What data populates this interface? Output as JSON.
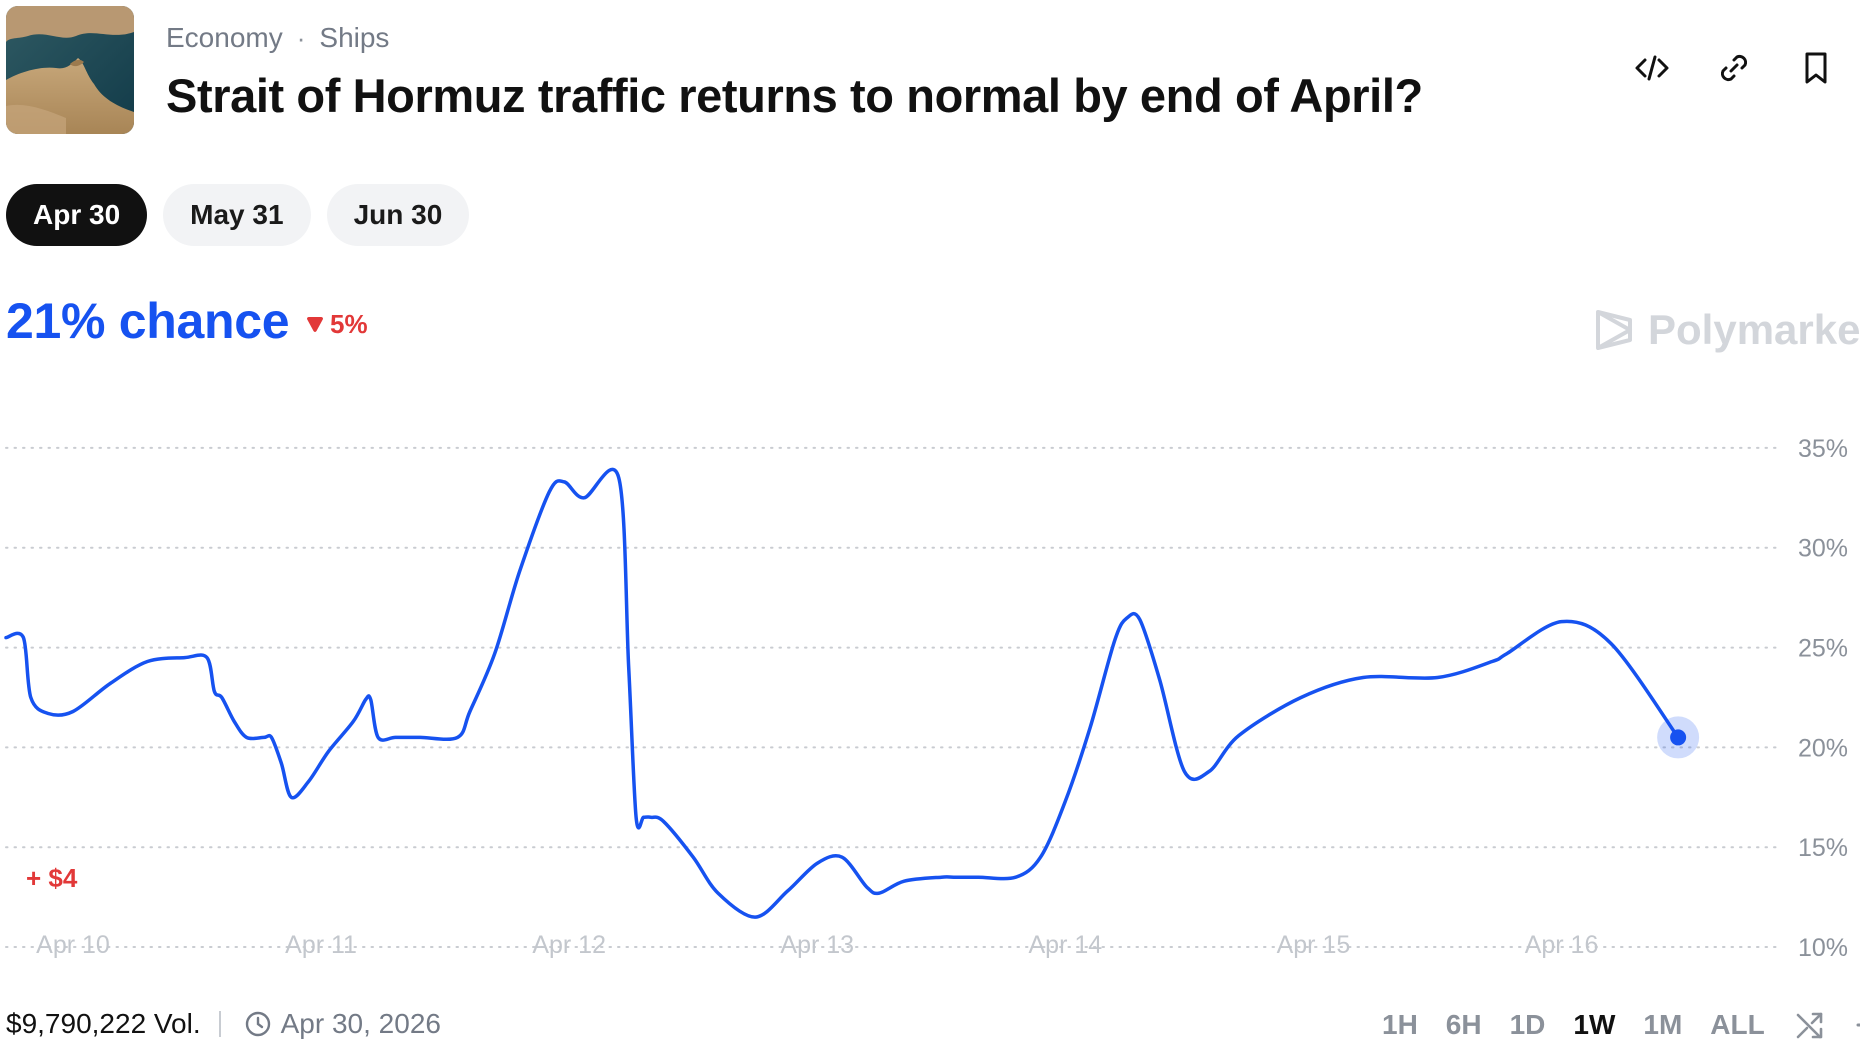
{
  "market": {
    "category": "Economy",
    "subcategory": "Ships",
    "separator": "·",
    "title": "Strait of Hormuz traffic returns to normal by end of April?"
  },
  "header_actions": [
    "embed-icon",
    "link-icon",
    "bookmark-icon"
  ],
  "date_tabs": [
    {
      "label": "Apr 30",
      "active": true
    },
    {
      "label": "May 31",
      "active": false
    },
    {
      "label": "Jun 30",
      "active": false
    }
  ],
  "summary": {
    "chance": "21% chance",
    "change": "5%",
    "change_direction": "down",
    "brand": "Polymarket"
  },
  "chart_data": {
    "type": "line",
    "x_tick_labels": [
      "Apr 10",
      "Apr 11",
      "Apr 12",
      "Apr 13",
      "Apr 14",
      "Apr 15",
      "Apr 16"
    ],
    "y_tick_labels": [
      "35%",
      "30%",
      "25%",
      "20%",
      "15%",
      "10%"
    ],
    "y_ticks": [
      35,
      30,
      25,
      20,
      15,
      10
    ],
    "ylim": [
      8.6,
      37.4
    ],
    "xlim": [
      -0.27,
      6.8
    ],
    "grid": true,
    "annotation": "+ $4",
    "color": "#1652f0",
    "series": [
      {
        "x": [
          -0.27,
          -0.2,
          -0.17,
          -0.1,
          0.0,
          0.15,
          0.3,
          0.45,
          0.54,
          0.57,
          0.6,
          0.65,
          0.7,
          0.77,
          0.8,
          0.84,
          0.88,
          0.95,
          1.03,
          1.13,
          1.18,
          1.2,
          1.23,
          1.3,
          1.4,
          1.55,
          1.6,
          1.7,
          1.8,
          1.92,
          1.98,
          2.06,
          2.2,
          2.24,
          2.27,
          2.3,
          2.33,
          2.38,
          2.5,
          2.6,
          2.75,
          2.88,
          3.0,
          3.1,
          3.2,
          3.25,
          3.35,
          3.5,
          3.55,
          3.65,
          3.8,
          3.9,
          4.0,
          4.1,
          4.2,
          4.25,
          4.3,
          4.38,
          4.48,
          4.58,
          4.7,
          4.95,
          5.2,
          5.5,
          5.72,
          5.78,
          6.0,
          6.2,
          6.47
        ],
        "y": [
          25.5,
          25.5,
          22.5,
          21.7,
          21.8,
          23.2,
          24.3,
          24.5,
          24.5,
          22.8,
          22.5,
          21.3,
          20.5,
          20.5,
          20.5,
          19.2,
          17.5,
          18.3,
          19.8,
          21.3,
          22.4,
          22.4,
          20.5,
          20.5,
          20.5,
          20.5,
          21.8,
          24.7,
          28.8,
          32.8,
          33.3,
          32.5,
          33.5,
          24.0,
          16.5,
          16.5,
          16.5,
          16.3,
          14.5,
          12.7,
          11.5,
          12.8,
          14.2,
          14.5,
          13.0,
          12.7,
          13.3,
          13.5,
          13.5,
          13.5,
          13.5,
          14.5,
          17.3,
          21.0,
          25.4,
          26.5,
          26.4,
          23.4,
          18.8,
          18.8,
          20.6,
          22.5,
          23.5,
          23.5,
          24.3,
          24.7,
          26.3,
          25.2,
          20.5
        ]
      }
    ]
  },
  "footer": {
    "volume": "$9,790,222 Vol.",
    "end_date": "Apr 30, 2026",
    "ranges": [
      {
        "label": "1H",
        "active": false
      },
      {
        "label": "6H",
        "active": false
      },
      {
        "label": "1D",
        "active": false
      },
      {
        "label": "1W",
        "active": true
      },
      {
        "label": "1M",
        "active": false
      },
      {
        "label": "ALL",
        "active": false
      }
    ]
  }
}
